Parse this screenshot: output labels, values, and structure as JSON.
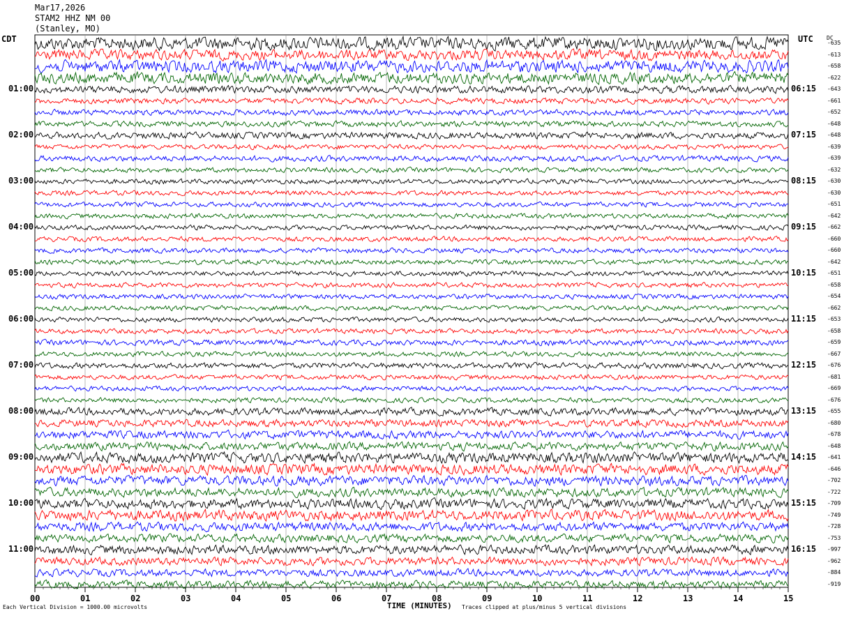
{
  "header": {
    "date": "Mar17,2026",
    "station": "STAM2 HHZ NM 00",
    "location": "(Stanley, MO)"
  },
  "left_tz": "CDT",
  "right_tz": "UTC",
  "dc_label": "DC",
  "footer": {
    "vertical_division": "Each Vertical Division = 1000.00 microvolts",
    "clip_note": "Traces clipped at plus/minus 5 vertical divisions"
  },
  "chart_data": {
    "type": "line",
    "title": "",
    "xlabel": "TIME (MINUTES)",
    "xlim": [
      0,
      15
    ],
    "x_ticks": [
      "00",
      "01",
      "02",
      "03",
      "04",
      "05",
      "06",
      "07",
      "08",
      "09",
      "10",
      "11",
      "12",
      "13",
      "14",
      "15"
    ],
    "trace_colors": [
      "#000000",
      "#ff0000",
      "#0000ff",
      "#006400"
    ],
    "left_hour_labels": [
      "01:00",
      "02:00",
      "03:00",
      "04:00",
      "05:00",
      "06:00",
      "07:00",
      "08:00",
      "09:00",
      "10:00",
      "11:00"
    ],
    "right_hour_labels": [
      "06:15",
      "07:15",
      "08:15",
      "09:15",
      "10:15",
      "11:15",
      "12:15",
      "13:15",
      "14:15",
      "15:15",
      "16:15"
    ],
    "dc_offsets": [
      "-635",
      "-613",
      "-658",
      "-622",
      "-643",
      "-661",
      "-652",
      "-648",
      "-648",
      "-639",
      "-639",
      "-632",
      "-630",
      "-630",
      "-651",
      "-642",
      "-662",
      "-660",
      "-660",
      "-642",
      "-651",
      "-658",
      "-654",
      "-662",
      "-653",
      "-658",
      "-659",
      "-667",
      "-676",
      "-681",
      "-669",
      "-676",
      "-655",
      "-680",
      "-678",
      "-648",
      "-641",
      "-646",
      "-702",
      "-722",
      "-709",
      "-749",
      "-728",
      "-753",
      "-997",
      "-962",
      "-884",
      "-919"
    ],
    "trace_amplitude_relative": [
      1.6,
      1.3,
      1.5,
      1.4,
      0.9,
      0.7,
      0.7,
      0.7,
      0.8,
      0.6,
      0.7,
      0.6,
      0.6,
      0.6,
      0.6,
      0.6,
      0.6,
      0.6,
      0.6,
      0.6,
      0.6,
      0.6,
      0.6,
      0.6,
      0.6,
      0.6,
      0.7,
      0.6,
      0.7,
      0.6,
      0.6,
      0.6,
      0.9,
      0.9,
      1.0,
      1.0,
      1.3,
      1.3,
      1.2,
      1.1,
      1.2,
      1.3,
      1.1,
      1.0,
      1.1,
      1.0,
      0.9,
      0.9
    ]
  }
}
